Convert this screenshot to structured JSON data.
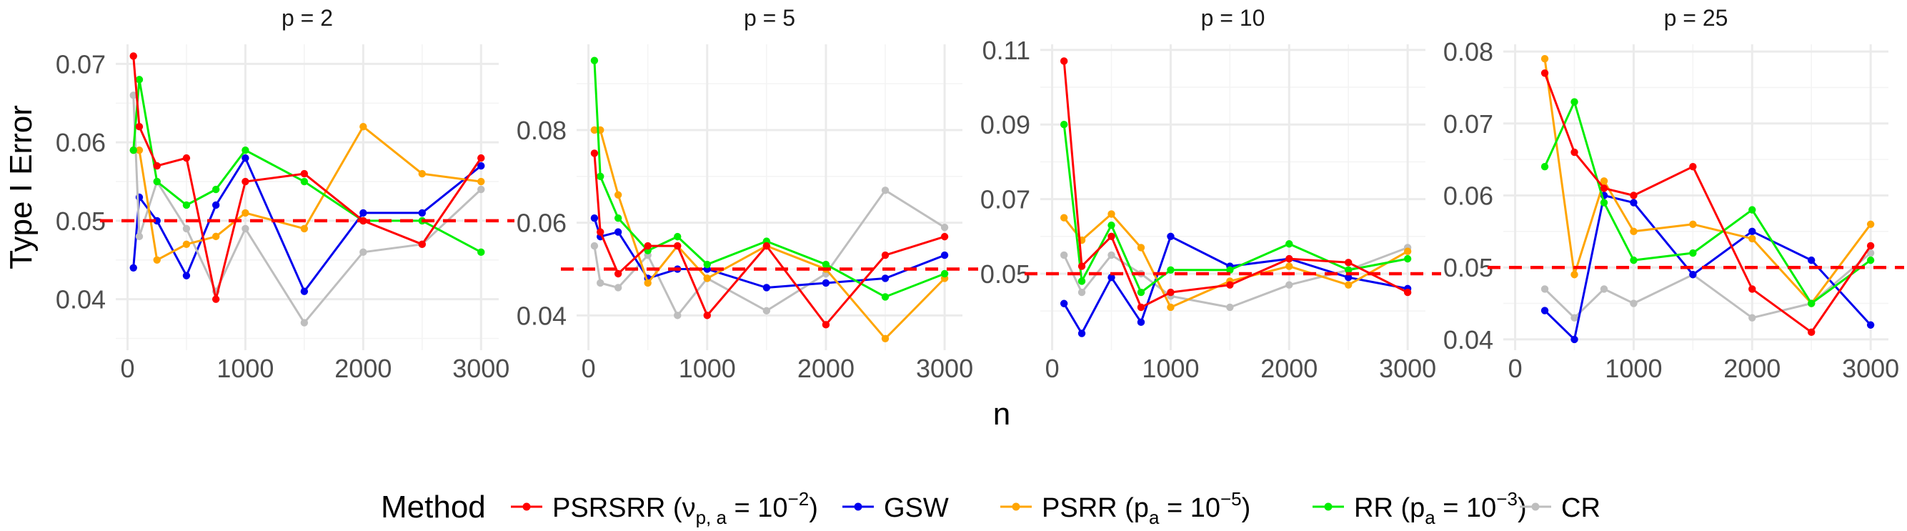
{
  "figure": {
    "ylabel": "Type I Error",
    "xlabel": "n",
    "legend_title": "Method"
  },
  "chart_data": {
    "type": "line",
    "title": "",
    "xlabel": "n",
    "ylabel": "Type I Error",
    "reference_line": {
      "y": 0.05,
      "color": "#FF0000",
      "style": "dashed"
    },
    "legend": {
      "title": "Method",
      "position": "bottom",
      "entries": [
        {
          "key": "PSRSRR",
          "text": "PSRSRR ",
          "param": "ν",
          "param_sub": "p, a",
          "value_text": " = 10",
          "exp": "−2",
          "color": "#FF0000"
        },
        {
          "key": "GSW",
          "text": "GSW",
          "color": "#0000EE"
        },
        {
          "key": "PSRR",
          "text": "PSRR ",
          "param": "p",
          "param_sub": "a",
          "value_text": " = 10",
          "exp": "−5",
          "color": "#FFA500"
        },
        {
          "key": "RR",
          "text": "RR ",
          "param": "p",
          "param_sub": "a",
          "value_text": " = 10",
          "exp": "−3",
          "color": "#00EE00"
        },
        {
          "key": "CR",
          "text": "CR",
          "color": "#BEBEBE"
        }
      ]
    },
    "panels": [
      {
        "strip": "p = 2",
        "xlim": [
          -100,
          3150
        ],
        "ylim": [
          0.0335,
          0.0725
        ],
        "xticks": [
          0,
          1000,
          2000,
          3000
        ],
        "xtick_labels": [
          "0",
          "1000",
          "2000",
          "3000"
        ],
        "yticks": [
          0.04,
          0.05,
          0.06,
          0.07
        ],
        "ytick_labels": [
          "0.04",
          "0.05",
          "0.06",
          "0.07"
        ],
        "series": [
          {
            "name": "GSW",
            "x": [
              50,
              100,
              250,
              500,
              750,
              1000,
              1500,
              2000,
              2500,
              3000
            ],
            "y": [
              0.044,
              0.053,
              0.05,
              0.043,
              0.052,
              0.058,
              0.041,
              0.051,
              0.051,
              0.057
            ]
          },
          {
            "name": "CR",
            "x": [
              50,
              100,
              250,
              500,
              750,
              1000,
              1500,
              2000,
              2500,
              3000
            ],
            "y": [
              0.066,
              0.048,
              0.055,
              0.049,
              0.041,
              0.049,
              0.037,
              0.046,
              0.047,
              0.054
            ]
          },
          {
            "name": "PSRR",
            "x": [
              50,
              100,
              250,
              500,
              750,
              1000,
              1500,
              2000,
              2500,
              3000
            ],
            "y": [
              0.059,
              0.059,
              0.045,
              0.047,
              0.048,
              0.051,
              0.049,
              0.062,
              0.056,
              0.055
            ]
          },
          {
            "name": "RR",
            "x": [
              50,
              100,
              250,
              500,
              750,
              1000,
              1500,
              2000,
              2500,
              3000
            ],
            "y": [
              0.059,
              0.068,
              0.055,
              0.052,
              0.054,
              0.059,
              0.055,
              0.05,
              0.05,
              0.046
            ]
          },
          {
            "name": "PSRSRR",
            "x": [
              50,
              100,
              250,
              500,
              750,
              1000,
              1500,
              2000,
              2500,
              3000
            ],
            "y": [
              0.071,
              0.062,
              0.057,
              0.058,
              0.04,
              0.055,
              0.056,
              0.05,
              0.047,
              0.058
            ]
          }
        ]
      },
      {
        "strip": "p = 5",
        "xlim": [
          -100,
          3150
        ],
        "ylim": [
          0.0325,
          0.0985
        ],
        "xticks": [
          0,
          1000,
          2000,
          3000
        ],
        "xtick_labels": [
          "0",
          "1000",
          "2000",
          "3000"
        ],
        "yticks": [
          0.04,
          0.06,
          0.08
        ],
        "ytick_labels": [
          "0.04",
          "0.06",
          "0.08"
        ],
        "series": [
          {
            "name": "CR",
            "x": [
              50,
              100,
              250,
              500,
              750,
              1000,
              1500,
              2000,
              2500,
              3000
            ],
            "y": [
              0.055,
              0.047,
              0.046,
              0.053,
              0.04,
              0.048,
              0.041,
              0.049,
              0.067,
              0.059
            ]
          },
          {
            "name": "GSW",
            "x": [
              50,
              100,
              250,
              500,
              750,
              1000,
              1500,
              2000,
              2500,
              3000
            ],
            "y": [
              0.061,
              0.057,
              0.058,
              0.048,
              0.05,
              0.05,
              0.046,
              0.047,
              0.048,
              0.053
            ]
          },
          {
            "name": "PSRR",
            "x": [
              50,
              100,
              250,
              500,
              750,
              1000,
              1500,
              2000,
              2500,
              3000
            ],
            "y": [
              0.08,
              0.08,
              0.066,
              0.047,
              0.055,
              0.048,
              0.055,
              0.05,
              0.035,
              0.048
            ]
          },
          {
            "name": "RR",
            "x": [
              50,
              100,
              250,
              500,
              750,
              1000,
              1500,
              2000,
              2500,
              3000
            ],
            "y": [
              0.095,
              0.07,
              0.061,
              0.054,
              0.057,
              0.051,
              0.056,
              0.051,
              0.044,
              0.049
            ]
          },
          {
            "name": "PSRSRR",
            "x": [
              50,
              100,
              250,
              500,
              750,
              1000,
              1500,
              2000,
              2500,
              3000
            ],
            "y": [
              0.075,
              0.058,
              0.049,
              0.055,
              0.055,
              0.04,
              0.055,
              0.038,
              0.053,
              0.057
            ]
          }
        ]
      },
      {
        "strip": "p = 10",
        "xlim": [
          -100,
          3150
        ],
        "ylim": [
          0.0295,
          0.1115
        ],
        "xticks": [
          0,
          1000,
          2000,
          3000
        ],
        "xtick_labels": [
          "0",
          "1000",
          "2000",
          "3000"
        ],
        "yticks": [
          0.05,
          0.07,
          0.09,
          0.11
        ],
        "ytick_labels": [
          "0.05",
          "0.07",
          "0.09",
          "0.11"
        ],
        "series": [
          {
            "name": "CR",
            "x": [
              100,
              250,
              500,
              750,
              1000,
              1500,
              2000,
              2500,
              3000
            ],
            "y": [
              0.055,
              0.045,
              0.055,
              0.05,
              0.044,
              0.041,
              0.047,
              0.051,
              0.057
            ]
          },
          {
            "name": "GSW",
            "x": [
              100,
              250,
              500,
              750,
              1000,
              1500,
              2000,
              2500,
              3000
            ],
            "y": [
              0.042,
              0.034,
              0.049,
              0.037,
              0.06,
              0.052,
              0.054,
              0.049,
              0.046
            ]
          },
          {
            "name": "PSRR",
            "x": [
              100,
              250,
              500,
              750,
              1000,
              1500,
              2000,
              2500,
              3000
            ],
            "y": [
              0.065,
              0.059,
              0.066,
              0.057,
              0.041,
              0.048,
              0.052,
              0.047,
              0.056
            ]
          },
          {
            "name": "RR",
            "x": [
              100,
              250,
              500,
              750,
              1000,
              1500,
              2000,
              2500,
              3000
            ],
            "y": [
              0.09,
              0.048,
              0.063,
              0.045,
              0.051,
              0.051,
              0.058,
              0.051,
              0.054
            ]
          },
          {
            "name": "PSRSRR",
            "x": [
              100,
              250,
              500,
              750,
              1000,
              1500,
              2000,
              2500,
              3000
            ],
            "y": [
              0.107,
              0.052,
              0.06,
              0.041,
              0.045,
              0.047,
              0.054,
              0.053,
              0.045
            ]
          }
        ]
      },
      {
        "strip": "p = 25",
        "xlim": [
          -100,
          3150
        ],
        "ylim": [
          0.0385,
          0.081
        ],
        "xticks": [
          0,
          1000,
          2000,
          3000
        ],
        "xtick_labels": [
          "0",
          "1000",
          "2000",
          "3000"
        ],
        "yticks": [
          0.04,
          0.05,
          0.06,
          0.07,
          0.08
        ],
        "ytick_labels": [
          "0.04",
          "0.05",
          "0.06",
          "0.07",
          "0.08"
        ],
        "series": [
          {
            "name": "CR",
            "x": [
              250,
              500,
              750,
              1000,
              1500,
              2000,
              2500,
              3000
            ],
            "y": [
              0.047,
              0.043,
              0.047,
              0.045,
              0.049,
              0.043,
              0.045,
              0.052
            ]
          },
          {
            "name": "GSW",
            "x": [
              250,
              500,
              750,
              1000,
              1500,
              2000,
              2500,
              3000
            ],
            "y": [
              0.044,
              0.04,
              0.06,
              0.059,
              0.049,
              0.055,
              0.051,
              0.042
            ]
          },
          {
            "name": "PSRR",
            "x": [
              250,
              500,
              750,
              1000,
              1500,
              2000,
              2500,
              3000
            ],
            "y": [
              0.079,
              0.049,
              0.062,
              0.055,
              0.056,
              0.054,
              0.045,
              0.056
            ]
          },
          {
            "name": "RR",
            "x": [
              250,
              500,
              750,
              1000,
              1500,
              2000,
              2500,
              3000
            ],
            "y": [
              0.064,
              0.073,
              0.059,
              0.051,
              0.052,
              0.058,
              0.045,
              0.051
            ]
          },
          {
            "name": "PSRSRR",
            "x": [
              250,
              500,
              750,
              1000,
              1500,
              2000,
              2500,
              3000
            ],
            "y": [
              0.077,
              0.066,
              0.061,
              0.06,
              0.064,
              0.047,
              0.041,
              0.053
            ]
          }
        ]
      }
    ]
  }
}
